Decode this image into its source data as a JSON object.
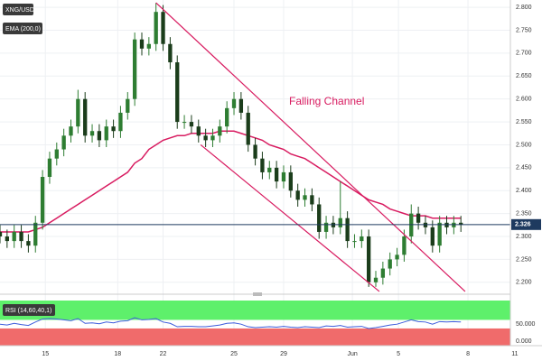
{
  "chart_data": {
    "type": "candlestick",
    "symbol": "XNG/USD",
    "ema_label": "EMA (200,0)",
    "annotation": "Falling Channel",
    "x": [
      0,
      1,
      2,
      3,
      4,
      5,
      6,
      7,
      8,
      9,
      10,
      11,
      12,
      13,
      14,
      15,
      16,
      17,
      18,
      19,
      20,
      21,
      22,
      23,
      24,
      25,
      26,
      27,
      28,
      29,
      30,
      31,
      32,
      33,
      34,
      35,
      36,
      37,
      38,
      39,
      40,
      41,
      42,
      43,
      44,
      45,
      46,
      47,
      48,
      49,
      50,
      51,
      52,
      53,
      54,
      55,
      56,
      57,
      58,
      59,
      60,
      61,
      62,
      63,
      64,
      65
    ],
    "open": [
      2.31,
      2.3,
      2.29,
      2.31,
      2.29,
      2.28,
      2.33,
      2.43,
      2.47,
      2.49,
      2.52,
      2.54,
      2.6,
      2.52,
      2.53,
      2.51,
      2.54,
      2.53,
      2.57,
      2.6,
      2.73,
      2.71,
      2.72,
      2.79,
      2.72,
      2.68,
      2.55,
      2.55,
      2.54,
      2.52,
      2.51,
      2.52,
      2.54,
      2.58,
      2.6,
      2.57,
      2.5,
      2.47,
      2.44,
      2.45,
      2.42,
      2.44,
      2.4,
      2.38,
      2.39,
      2.37,
      2.31,
      2.33,
      2.32,
      2.34,
      2.29,
      2.29,
      2.3,
      2.2,
      2.21,
      2.23,
      2.25,
      2.26,
      2.3,
      2.35,
      2.33,
      2.32,
      2.28,
      2.33,
      2.32,
      2.33
    ],
    "high": [
      2.325,
      2.315,
      2.325,
      2.325,
      2.305,
      2.345,
      2.445,
      2.485,
      2.505,
      2.535,
      2.555,
      2.62,
      2.615,
      2.545,
      2.545,
      2.555,
      2.555,
      2.585,
      2.615,
      2.745,
      2.745,
      2.735,
      2.81,
      2.805,
      2.735,
      2.695,
      2.565,
      2.565,
      2.555,
      2.535,
      2.535,
      2.555,
      2.595,
      2.615,
      2.615,
      2.585,
      2.515,
      2.485,
      2.465,
      2.465,
      2.455,
      2.455,
      2.415,
      2.405,
      2.405,
      2.385,
      2.345,
      2.345,
      2.42,
      2.355,
      2.305,
      2.315,
      2.315,
      2.225,
      2.245,
      2.265,
      2.275,
      2.315,
      2.37,
      2.365,
      2.345,
      2.335,
      2.345,
      2.345,
      2.345,
      2.345
    ],
    "low": [
      2.285,
      2.275,
      2.275,
      2.275,
      2.265,
      2.265,
      2.315,
      2.415,
      2.455,
      2.475,
      2.505,
      2.525,
      2.505,
      2.505,
      2.495,
      2.495,
      2.515,
      2.515,
      2.555,
      2.585,
      2.695,
      2.695,
      2.705,
      2.705,
      2.665,
      2.535,
      2.535,
      2.525,
      2.505,
      2.495,
      2.495,
      2.505,
      2.525,
      2.565,
      2.555,
      2.485,
      2.455,
      2.425,
      2.425,
      2.405,
      2.405,
      2.385,
      2.365,
      2.365,
      2.355,
      2.295,
      2.295,
      2.305,
      2.305,
      2.275,
      2.275,
      2.275,
      2.19,
      2.19,
      2.195,
      2.215,
      2.235,
      2.245,
      2.285,
      2.315,
      2.305,
      2.265,
      2.265,
      2.305,
      2.305,
      2.31
    ],
    "close": [
      2.3,
      2.29,
      2.31,
      2.29,
      2.28,
      2.33,
      2.43,
      2.47,
      2.49,
      2.52,
      2.54,
      2.6,
      2.52,
      2.53,
      2.51,
      2.54,
      2.53,
      2.57,
      2.6,
      2.73,
      2.71,
      2.72,
      2.79,
      2.72,
      2.68,
      2.55,
      2.55,
      2.54,
      2.52,
      2.51,
      2.52,
      2.54,
      2.58,
      2.6,
      2.57,
      2.5,
      2.47,
      2.44,
      2.45,
      2.42,
      2.44,
      2.4,
      2.38,
      2.39,
      2.37,
      2.31,
      2.33,
      2.32,
      2.34,
      2.29,
      2.29,
      2.3,
      2.2,
      2.21,
      2.23,
      2.25,
      2.26,
      2.3,
      2.35,
      2.33,
      2.32,
      2.28,
      2.33,
      2.32,
      2.33,
      2.326
    ],
    "up_color": "#2e7d32",
    "down_color": "#1b3d1b",
    "ema": {
      "color": "#d81b60",
      "values": [
        2.31,
        2.31,
        2.31,
        2.31,
        2.31,
        2.315,
        2.32,
        2.33,
        2.34,
        2.35,
        2.36,
        2.37,
        2.38,
        2.39,
        2.4,
        2.41,
        2.42,
        2.43,
        2.44,
        2.46,
        2.47,
        2.49,
        2.5,
        2.51,
        2.515,
        2.52,
        2.52,
        2.525,
        2.525,
        2.525,
        2.525,
        2.53,
        2.53,
        2.53,
        2.525,
        2.52,
        2.515,
        2.51,
        2.5,
        2.495,
        2.49,
        2.48,
        2.475,
        2.47,
        2.46,
        2.45,
        2.44,
        2.43,
        2.42,
        2.41,
        2.4,
        2.39,
        2.38,
        2.375,
        2.37,
        2.36,
        2.355,
        2.35,
        2.345,
        2.345,
        2.345,
        2.34,
        2.34,
        2.34,
        2.34,
        2.34
      ]
    },
    "trendlines": [
      {
        "color": "#d81b60",
        "x": [
          22,
          65.6
        ],
        "y": [
          2.81,
          2.18
        ]
      },
      {
        "color": "#d81b60",
        "x": [
          28.3,
          53.5
        ],
        "y": [
          2.5,
          2.18
        ]
      }
    ],
    "last_price": 2.326,
    "xlim": [
      0,
      73
    ],
    "ylim": [
      2.174,
      2.816
    ],
    "xticks": [
      {
        "value": 6.4,
        "label": "15"
      },
      {
        "value": 16.6,
        "label": "18"
      },
      {
        "value": 23,
        "label": "22"
      },
      {
        "value": 33,
        "label": "25"
      },
      {
        "value": 40,
        "label": "29"
      },
      {
        "value": 49.7,
        "label": "Jun"
      },
      {
        "value": 56.2,
        "label": "5"
      },
      {
        "value": 66,
        "label": "8"
      },
      {
        "value": 72.6,
        "label": "11"
      }
    ],
    "yticks": [
      {
        "value": 2.2,
        "label": "2.200"
      },
      {
        "value": 2.25,
        "label": "2.250"
      },
      {
        "value": 2.3,
        "label": "2.300"
      },
      {
        "value": 2.35,
        "label": "2.350"
      },
      {
        "value": 2.4,
        "label": "2.400"
      },
      {
        "value": 2.45,
        "label": "2.450"
      },
      {
        "value": 2.5,
        "label": "2.500"
      },
      {
        "value": 2.55,
        "label": "2.550"
      },
      {
        "value": 2.6,
        "label": "2.600"
      },
      {
        "value": 2.65,
        "label": "2.650"
      },
      {
        "value": 2.7,
        "label": "2.700"
      },
      {
        "value": 2.75,
        "label": "2.750"
      },
      {
        "value": 2.8,
        "label": "2.800"
      }
    ],
    "grid": true,
    "rsi": {
      "label": "RSI (14,60,40,1)",
      "color": "#3b5bdb",
      "upper": 60,
      "lower": 40,
      "ylim": [
        0,
        105
      ],
      "yticks": [
        {
          "value": 0,
          "label": "0.000"
        },
        {
          "value": 50,
          "label": "50.000"
        }
      ],
      "values": [
        50,
        48,
        52,
        49,
        47,
        55,
        62,
        63,
        62,
        60,
        58,
        63,
        52,
        53,
        51,
        55,
        53,
        57,
        58,
        65,
        60,
        61,
        63,
        55,
        52,
        44,
        45,
        45,
        44,
        44,
        46,
        48,
        52,
        53,
        50,
        44,
        42,
        43,
        44,
        43,
        45,
        43,
        42,
        44,
        43,
        42,
        46,
        45,
        47,
        43,
        44,
        45,
        40,
        42,
        45,
        48,
        50,
        55,
        60,
        56,
        55,
        50,
        56,
        55,
        56,
        55
      ]
    }
  }
}
